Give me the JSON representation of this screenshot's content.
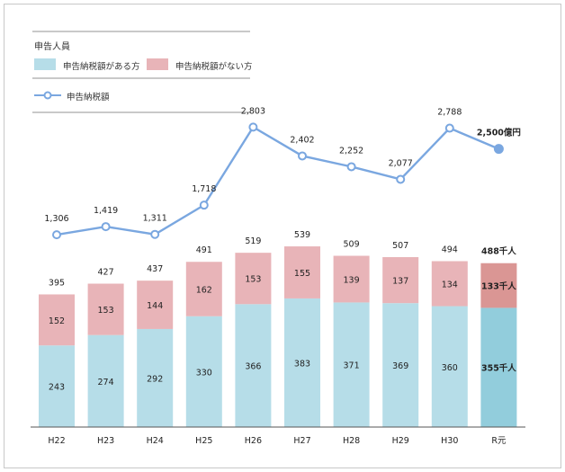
{
  "legend": {
    "title": "申告人員",
    "items": [
      {
        "label": "申告納税額がある方",
        "color": "#b6dde8"
      },
      {
        "label": "申告納税額がない方",
        "color": "#e8b4b8"
      }
    ],
    "line_label": "申告納税額",
    "line_color": "#7aa7e0"
  },
  "chart_data": {
    "type": "bar",
    "categories": [
      "H22",
      "H23",
      "H24",
      "H25",
      "H26",
      "H27",
      "H28",
      "H29",
      "H30",
      "R元"
    ],
    "series": [
      {
        "name": "申告納税額がある方",
        "values": [
          243,
          274,
          292,
          330,
          366,
          383,
          371,
          369,
          360,
          355
        ],
        "labels": [
          "243",
          "274",
          "292",
          "330",
          "366",
          "383",
          "371",
          "369",
          "360",
          "355千人"
        ]
      },
      {
        "name": "申告納税額がない方",
        "values": [
          152,
          153,
          144,
          162,
          153,
          155,
          139,
          137,
          134,
          133
        ],
        "labels": [
          "152",
          "153",
          "144",
          "162",
          "153",
          "155",
          "139",
          "137",
          "134",
          "133千人"
        ]
      }
    ],
    "totals": [
      395,
      427,
      437,
      491,
      519,
      539,
      509,
      507,
      494,
      488
    ],
    "total_labels": [
      "395",
      "427",
      "437",
      "491",
      "519",
      "539",
      "509",
      "507",
      "494",
      "488千人"
    ],
    "line": {
      "name": "申告納税額",
      "values": [
        1306,
        1419,
        1311,
        1718,
        2803,
        2402,
        2252,
        2077,
        2788,
        2500
      ],
      "labels": [
        "1,306",
        "1,419",
        "1,311",
        "1,718",
        "2,803",
        "2,402",
        "2,252",
        "2,077",
        "2,788",
        "2,500億円"
      ]
    },
    "highlight_last": true,
    "colors": {
      "with_tax": "#b6dde8",
      "without_tax": "#e8b4b8",
      "with_tax_highlight": "#92cddc",
      "without_tax_highlight": "#da9694",
      "line": "#7aa7e0"
    }
  }
}
